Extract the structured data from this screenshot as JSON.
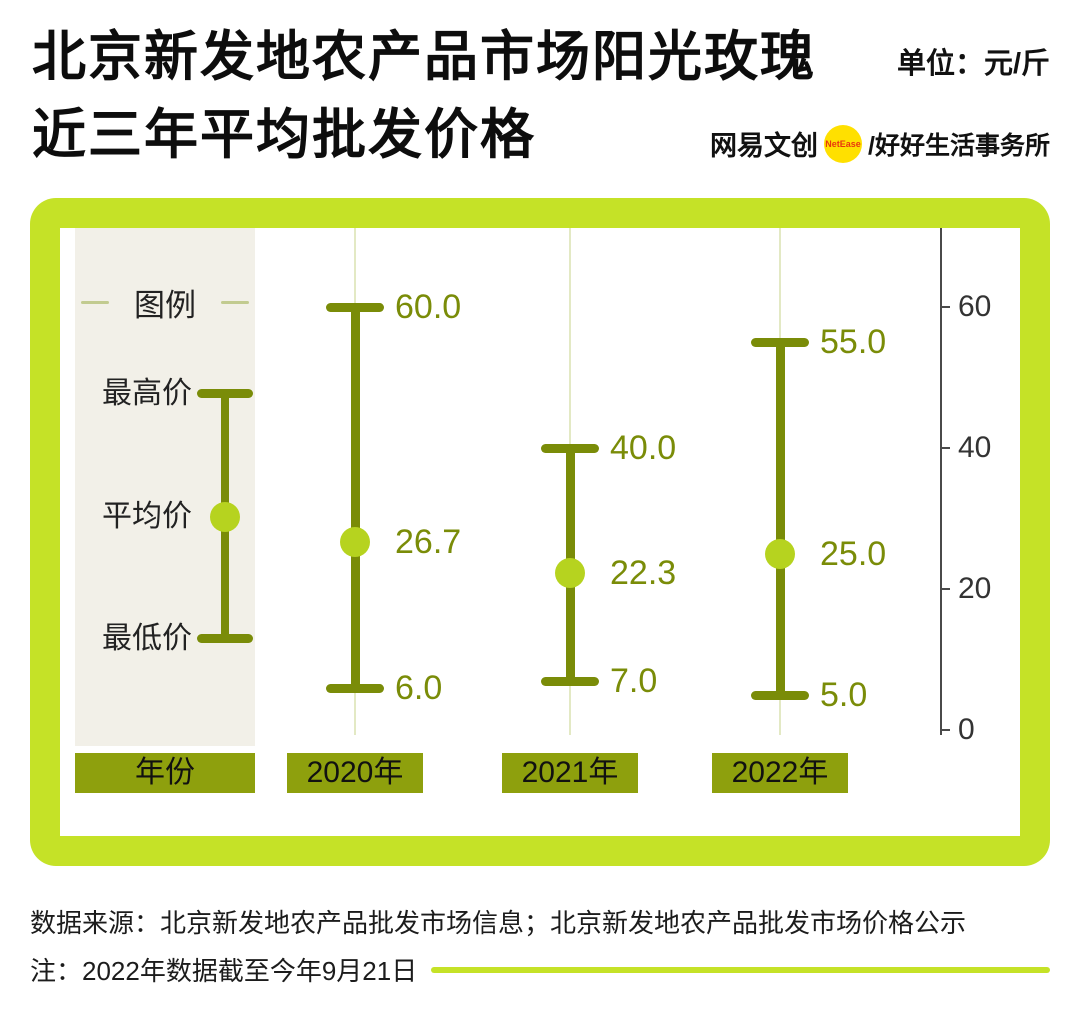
{
  "header": {
    "title_line1": "北京新发地农产品市场阳光玫瑰",
    "title_line2": "近三年平均批发价格",
    "unit": "单位：元/斤",
    "brand": "网易文创",
    "brand_badge": "NetEase",
    "brand_suffix": "/好好生活事务所"
  },
  "legend": {
    "title": "图例",
    "high_label": "最高价",
    "avg_label": "平均价",
    "low_label": "最低价"
  },
  "chart_data": {
    "type": "range",
    "title": "北京新发地农产品市场阳光玫瑰近三年平均批发价格",
    "unit": "元/斤",
    "category_header": "年份",
    "categories": [
      "2020年",
      "2021年",
      "2022年"
    ],
    "series": [
      {
        "name": "最高价",
        "values": [
          60.0,
          40.0,
          55.0
        ]
      },
      {
        "name": "平均价",
        "values": [
          26.7,
          22.3,
          25.0
        ]
      },
      {
        "name": "最低价",
        "values": [
          6.0,
          7.0,
          5.0
        ]
      }
    ],
    "value_labels": {
      "high": [
        "60.0",
        "40.0",
        "55.0"
      ],
      "avg": [
        "26.7",
        "22.3",
        "25.0"
      ],
      "low": [
        "6.0",
        "7.0",
        "5.0"
      ]
    },
    "yticks": [
      60,
      40,
      20,
      0
    ],
    "ylim": [
      0,
      71
    ],
    "grid": "vertical-light",
    "legend_position": "left-panel",
    "axis_position": "right"
  },
  "footer": {
    "source": "数据来源：北京新发地农产品批发市场信息；北京新发地农产品批发市场价格公示",
    "note": "注：2022年数据截至今年9月21日"
  },
  "colors": {
    "frame_green": "#c5e227",
    "olive": "#7a8c08",
    "dot_green": "#b6d31f",
    "label_box": "#8ea00d",
    "legend_bg": "#f2f0e8",
    "badge_yellow": "#ffe000"
  }
}
